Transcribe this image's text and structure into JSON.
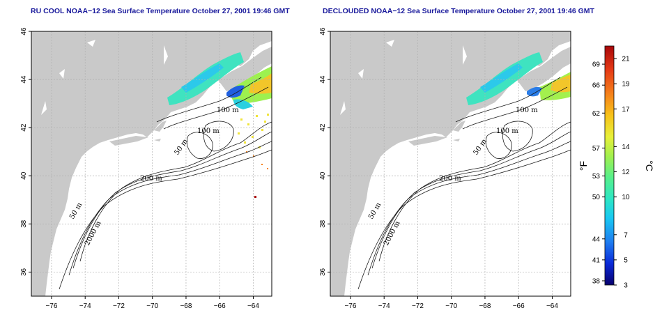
{
  "panels": [
    {
      "id": "ru-cool",
      "title": "RU COOL NOAA−12 Sea Surface Temperature October 27, 2001 19:46 GMT"
    },
    {
      "id": "declouded",
      "title": "DECLOUDED NOAA−12 Sea Surface Temperature October 27, 2001 19:46 GMT"
    }
  ],
  "axes": {
    "lon_ticks": [
      "−76",
      "−74",
      "−72",
      "−70",
      "−68",
      "−66",
      "−64"
    ],
    "lat_ticks": [
      "36",
      "38",
      "40",
      "42",
      "44",
      "46"
    ],
    "lon_range": [
      -77.2,
      -62.9
    ],
    "lat_range": [
      35.0,
      46.0
    ]
  },
  "contour_labels": [
    "100 m",
    "50 m",
    "100 m",
    "50 m",
    "200 m",
    "50 m",
    "2000 m"
  ],
  "colorbar": {
    "fahrenheit_ticks": [
      "69",
      "66",
      "62",
      "57",
      "53",
      "50",
      "44",
      "41",
      "38"
    ],
    "fahrenheit_values": [
      69,
      66,
      62,
      57,
      53,
      50,
      44,
      41,
      38
    ],
    "celsius_ticks": [
      "21",
      "19",
      "17",
      "14",
      "12",
      "10",
      "7",
      "5",
      "3"
    ],
    "celsius_values": [
      21,
      19,
      17,
      14,
      12,
      10,
      7,
      5,
      3
    ],
    "fahrenheit_label": "°F",
    "celsius_label": "°C",
    "range_c": [
      3,
      22
    ],
    "colors": [
      "#08006e",
      "#0a2ad8",
      "#1f7df0",
      "#19c8f2",
      "#2de6c4",
      "#57f08b",
      "#a3f04e",
      "#e8f03a",
      "#f7c21a",
      "#f5811b",
      "#e53a16",
      "#a8070a"
    ]
  },
  "colors": {
    "land": "#c9c9c9",
    "ocean": "#ffffff",
    "grid": "#b0b0b0",
    "title": "#1a1a9c"
  }
}
